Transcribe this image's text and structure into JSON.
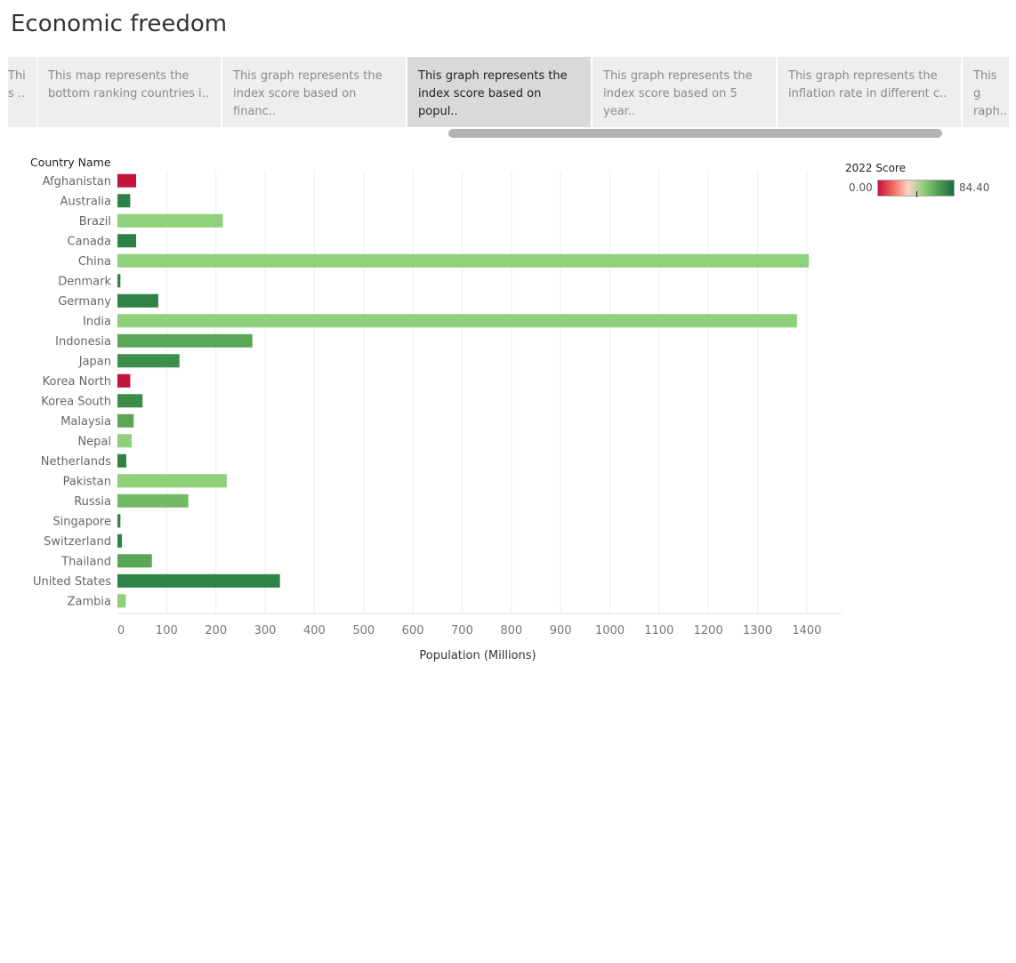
{
  "page": {
    "title": "Economic freedom"
  },
  "story": {
    "points": [
      {
        "line1": "Thi",
        "line2": "s .."
      },
      {
        "line1": "This map represents the",
        "line2": "bottom ranking countries i.."
      },
      {
        "line1": "This graph represents the",
        "line2": "index score based on financ.."
      },
      {
        "line1": "This graph represents the",
        "line2": "index score based on popul.."
      },
      {
        "line1": "This graph represents the",
        "line2": "index score based on 5 year.."
      },
      {
        "line1": "This graph represents the",
        "line2": "inflation rate in different c.."
      },
      {
        "line1": "This g",
        "line2": "raph.."
      }
    ],
    "active_index": 3
  },
  "legend": {
    "title": "2022 Score",
    "min_label": "0.00",
    "max_label": "84.40",
    "min": 0,
    "max": 84.4,
    "colors": [
      "#c0143c",
      "#f76a5e",
      "#f5d5c4",
      "#8fd07a",
      "#4f9e52",
      "#1e6b3a"
    ]
  },
  "chart_data": {
    "type": "bar",
    "orientation": "horizontal",
    "row_header": "Country Name",
    "xlabel": "Population (Millions)",
    "xlim": [
      0,
      1420
    ],
    "xticks": [
      0,
      100,
      200,
      300,
      400,
      500,
      600,
      700,
      800,
      900,
      1000,
      1100,
      1200,
      1300,
      1400
    ],
    "grid": true,
    "color_encoding": "2022 Score",
    "categories": [
      "Afghanistan",
      "Australia",
      "Brazil",
      "Canada",
      "China",
      "Denmark",
      "Germany",
      "India",
      "Indonesia",
      "Japan",
      "Korea North",
      "Korea South",
      "Malaysia",
      "Nepal",
      "Netherlands",
      "Pakistan",
      "Russia",
      "Singapore",
      "Switzerland",
      "Thailand",
      "United States",
      "Zambia"
    ],
    "values": [
      38,
      26,
      214,
      38,
      1404,
      6,
      83,
      1380,
      274,
      126,
      26,
      51,
      33,
      29,
      18,
      222,
      144,
      6,
      9,
      70,
      330,
      17
    ],
    "colors": [
      "#c0143c",
      "#2e8245",
      "#8fd07a",
      "#2e8245",
      "#8fd07a",
      "#2e8245",
      "#2e8245",
      "#8fd07a",
      "#5aa657",
      "#3d8f4a",
      "#c0143c",
      "#3a8c48",
      "#5aa657",
      "#8fd07a",
      "#2e8245",
      "#8fd07a",
      "#74bb68",
      "#2e8245",
      "#2e8245",
      "#5aa657",
      "#2e8245",
      "#8fd07a"
    ]
  }
}
